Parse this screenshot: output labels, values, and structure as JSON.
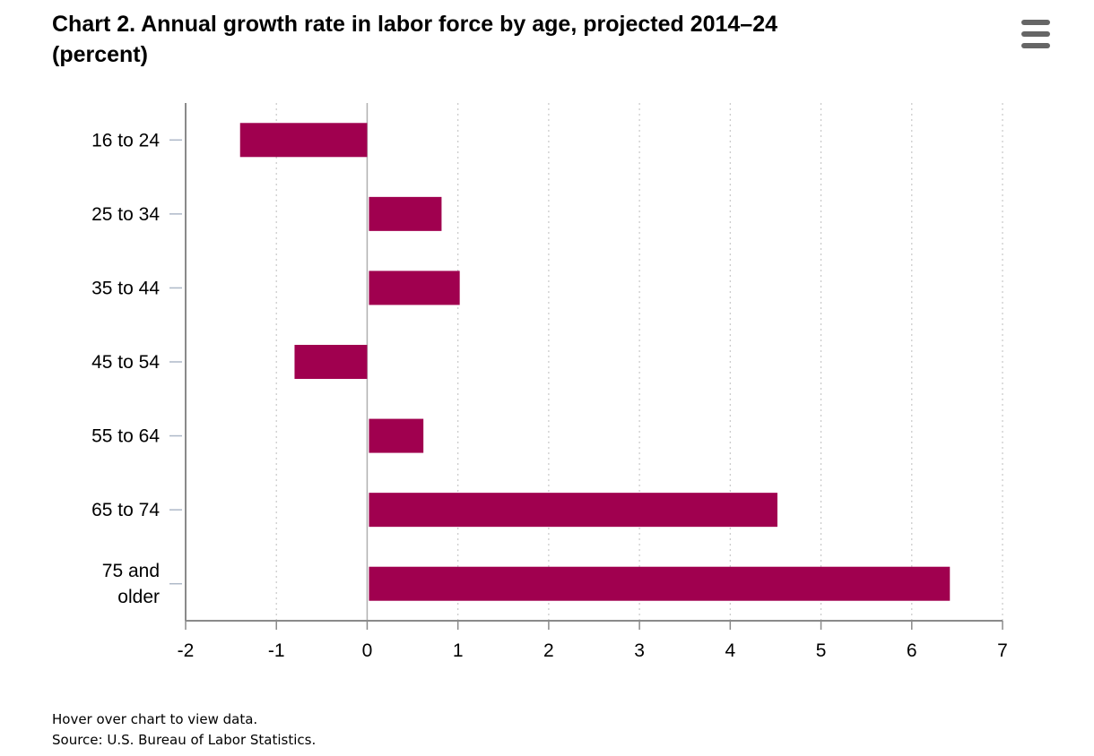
{
  "header": {
    "title_line1": "Chart 2. Annual growth rate in labor force by age, projected 2014–24",
    "title_line2": "(percent)",
    "menu_icon": "hamburger-menu-icon"
  },
  "chart_data": {
    "type": "bar",
    "orientation": "horizontal",
    "title": "Chart 2. Annual growth rate in labor force by age, projected 2014–24 (percent)",
    "categories": [
      [
        "16 to 24"
      ],
      [
        "25 to 34"
      ],
      [
        "35 to 44"
      ],
      [
        "45 to 54"
      ],
      [
        "55 to 64"
      ],
      [
        "65 to 74"
      ],
      [
        "75 and",
        "older"
      ]
    ],
    "values": [
      -1.4,
      0.8,
      1.0,
      -0.8,
      0.6,
      4.5,
      6.4
    ],
    "xlim": [
      -2,
      7
    ],
    "xticks": [
      "-2",
      "-1",
      "0",
      "1",
      "2",
      "3",
      "4",
      "5",
      "6",
      "7"
    ],
    "xlabel": "",
    "ylabel": "",
    "grid": "vertical dotted",
    "legend": "none",
    "bar_color": "#a0004f"
  },
  "footer": {
    "hover_note": "Hover over chart to view data.",
    "source": "Source: U.S. Bureau of Labor Statistics."
  }
}
